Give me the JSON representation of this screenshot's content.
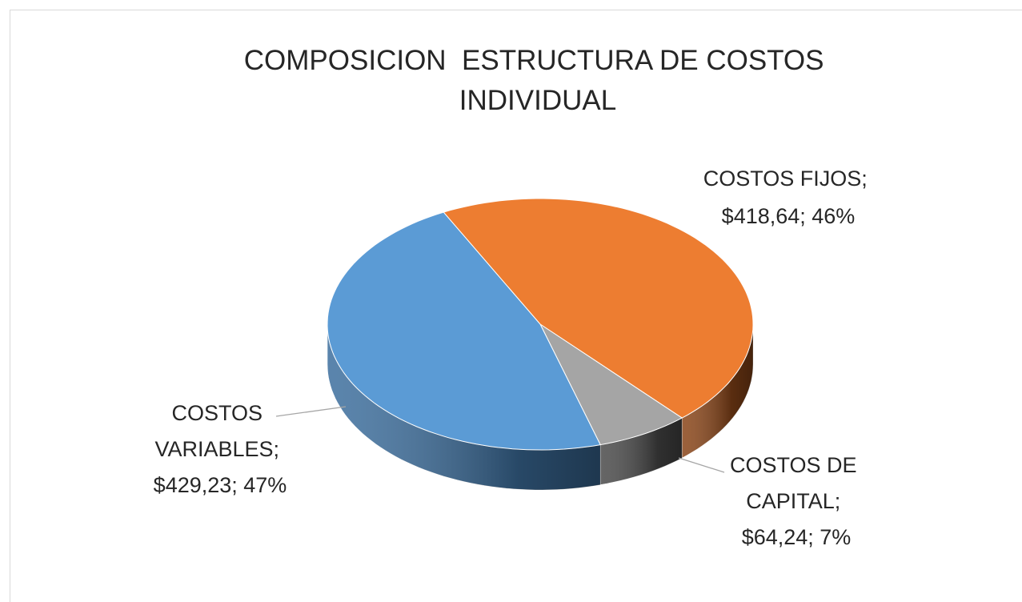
{
  "chart_data": {
    "type": "pie",
    "pseudo_3d": true,
    "title": "COMPOSICION  ESTRUCTURA DE COSTOS INDIVIDUAL",
    "values": [
      418.64,
      64.24,
      429.23
    ],
    "value_labels": [
      "COSTOS FIJOS; $418,64; 46%",
      "COSTOS DE CAPITAL; $64,24; 7%",
      "COSTOS VARIABLES; $429,23; 47%"
    ],
    "colors": [
      "#ed7d31",
      "#a5a5a5",
      "#5b9bd5"
    ]
  }
}
